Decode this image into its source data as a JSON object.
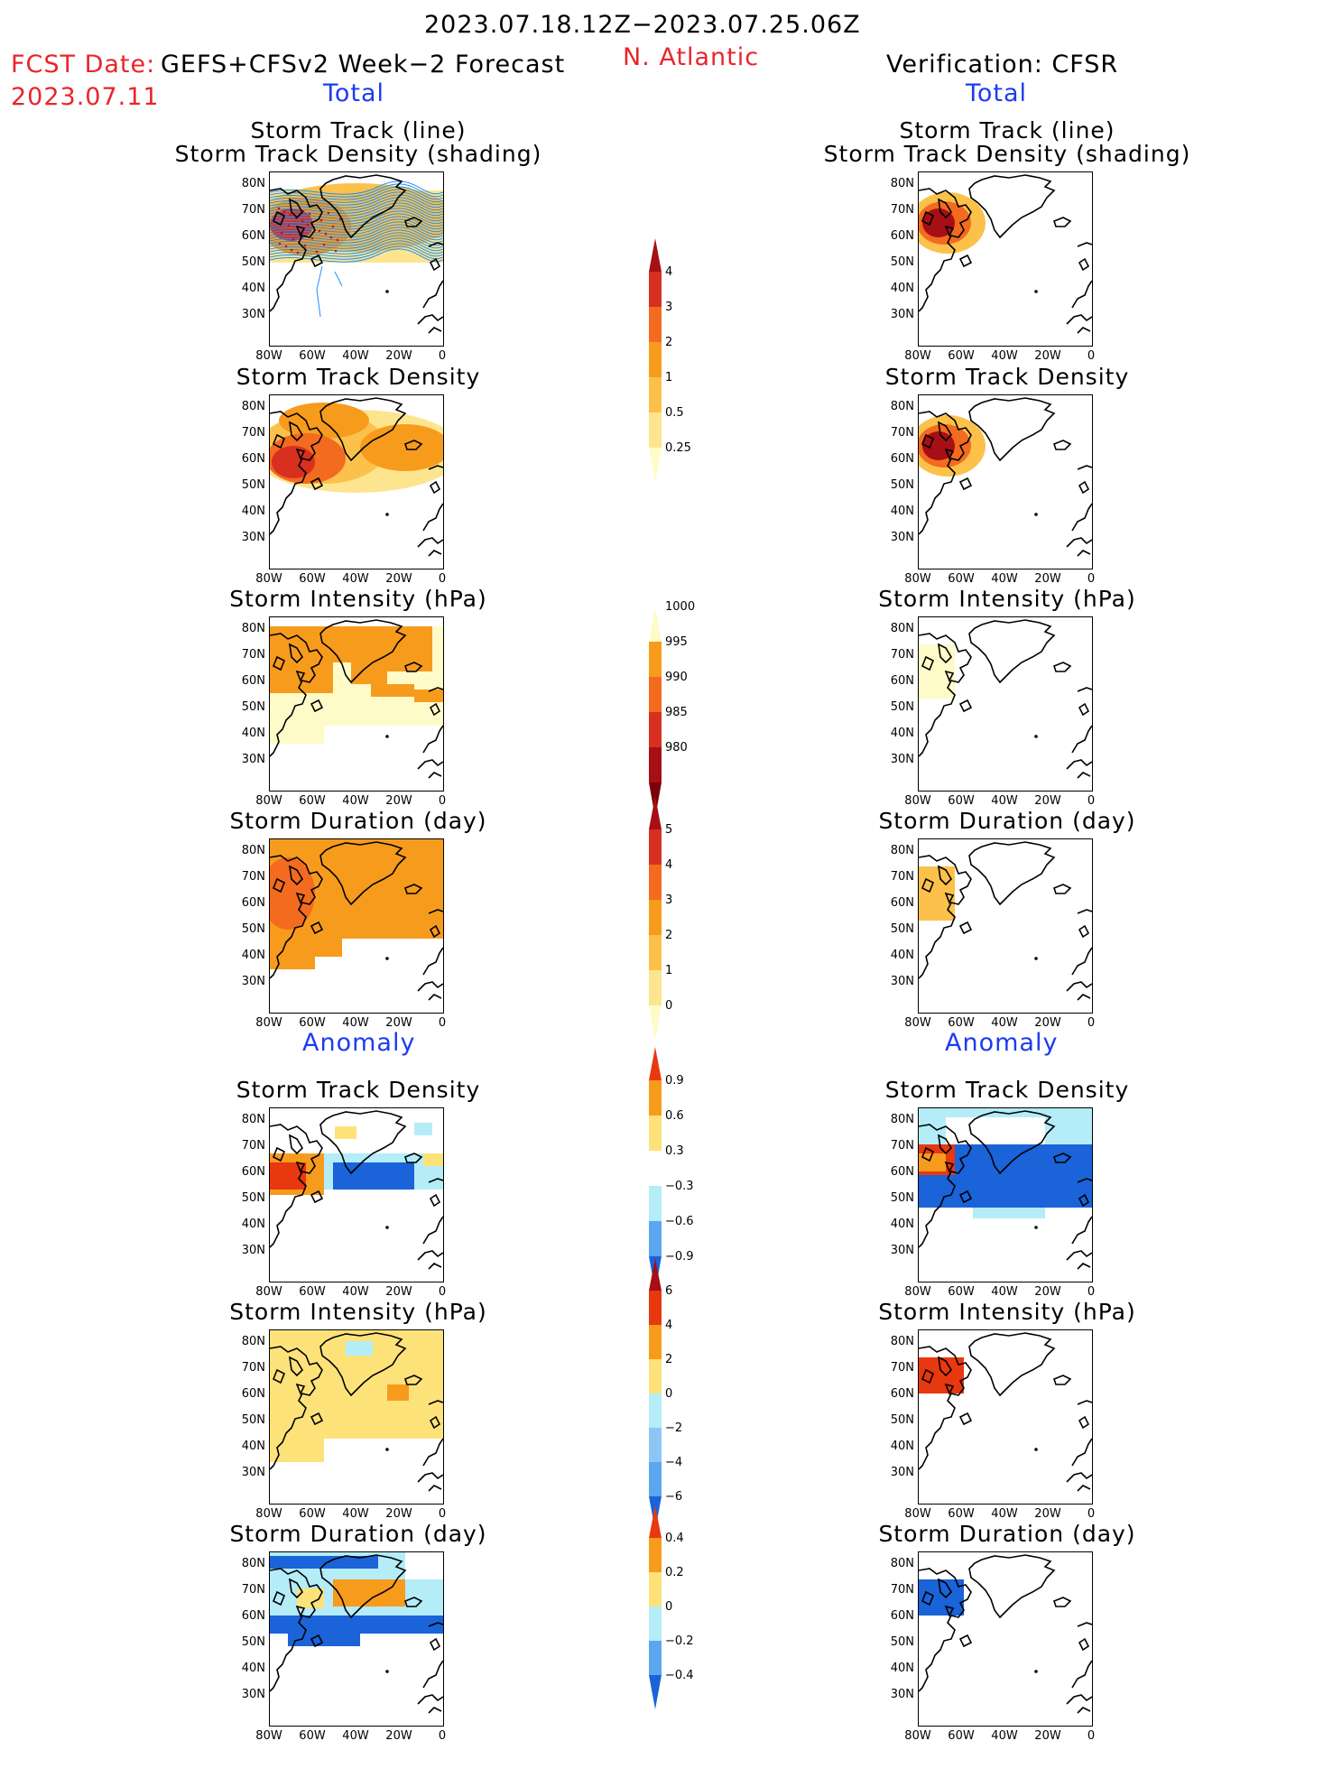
{
  "header": {
    "date_range": "2023.07.18.12Z−2023.07.25.06Z",
    "region": "N. Atlantic",
    "fcst_label": "FCST Date:",
    "model": "GEFS+CFSv2 Week−2 Forecast",
    "fcst_date": "2023.07.11",
    "verification": "Verification: CFSR"
  },
  "sections": {
    "total": "Total",
    "anomaly": "Anomaly"
  },
  "panel_titles": {
    "track_line": "Storm Track (line)",
    "track_density_shading": "Storm Track Density (shading)",
    "track_density": "Storm Track Density",
    "intensity": "Storm Intensity (hPa)",
    "duration": "Storm Duration (day)"
  },
  "axes": {
    "lat_ticks": [
      "80N",
      "70N",
      "60N",
      "50N",
      "40N",
      "30N"
    ],
    "lon_ticks": [
      "80W",
      "60W",
      "40W",
      "20W",
      "0"
    ]
  },
  "colorbars": {
    "density": {
      "labels": [
        "4",
        "3",
        "2",
        "1",
        "0.5",
        "0.25"
      ],
      "colors": [
        "#a50f15",
        "#d7301f",
        "#f26b1f",
        "#f79b1d",
        "#fbc14a",
        "#fde58f",
        "#fffbc8"
      ]
    },
    "intensity": {
      "labels": [
        "1000",
        "995",
        "990",
        "985",
        "980"
      ],
      "colors": [
        "#fffbc8",
        "#f79b1d",
        "#f26b1f",
        "#d7301f",
        "#a50f15",
        "#7a0009"
      ]
    },
    "duration": {
      "labels": [
        "5",
        "4",
        "3",
        "2",
        "1",
        "0"
      ],
      "colors": [
        "#a50f15",
        "#d7301f",
        "#f26b1f",
        "#f79b1d",
        "#fbc14a",
        "#fde58f",
        "#fffbc8"
      ]
    },
    "anom_density": {
      "labels": [
        "0.9",
        "0.6",
        "0.3",
        "−0.3",
        "−0.6",
        "−0.9"
      ],
      "colors": [
        "#e8380f",
        "#f79b1d",
        "#fde27a",
        "#ffffff",
        "#b4ecf8",
        "#5aa7ef",
        "#1a63d8"
      ]
    },
    "anom_intensity": {
      "labels": [
        "6",
        "4",
        "2",
        "0",
        "−2",
        "−4",
        "−6"
      ],
      "colors": [
        "#a50f15",
        "#e8380f",
        "#f79b1d",
        "#fde27a",
        "#b4ecf8",
        "#8cc6f5",
        "#5aa7ef",
        "#1a63d8"
      ]
    },
    "anom_duration": {
      "labels": [
        "0.4",
        "0.2",
        "0",
        "−0.2",
        "−0.4"
      ],
      "colors": [
        "#e8380f",
        "#f79b1d",
        "#fde27a",
        "#b4ecf8",
        "#5aa7ef",
        "#1a63d8"
      ]
    }
  }
}
